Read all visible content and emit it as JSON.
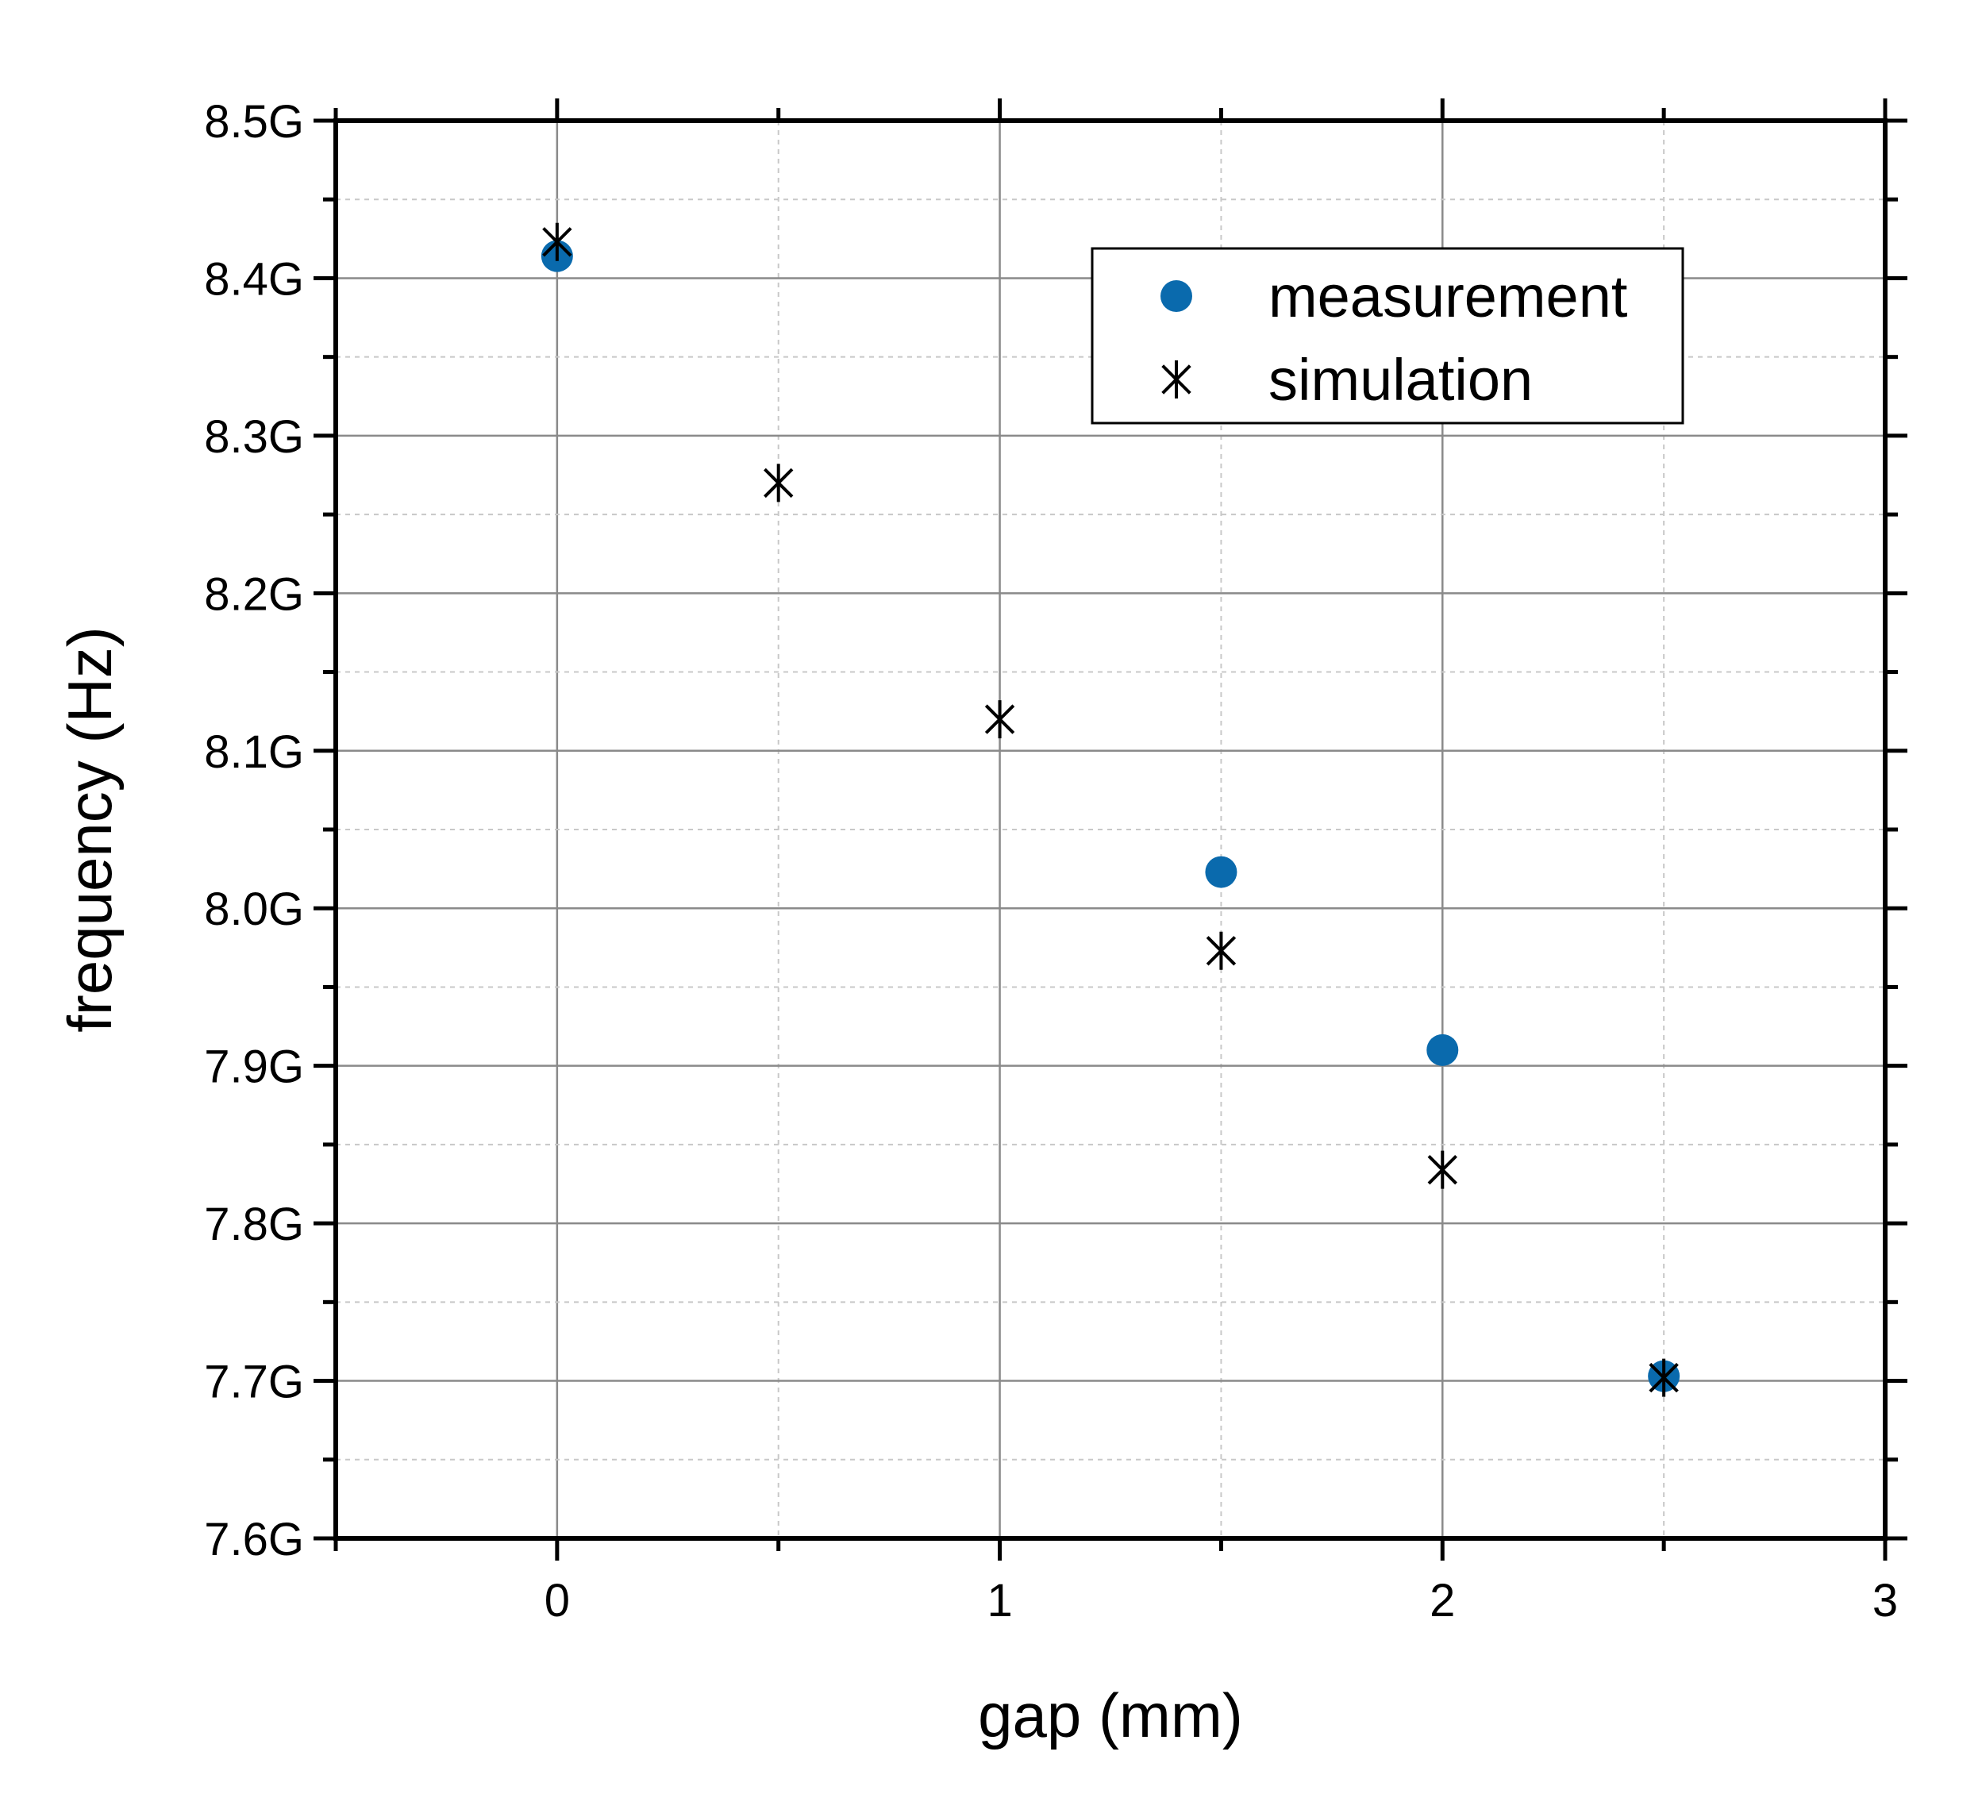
{
  "chart_data": {
    "type": "scatter",
    "xlabel": "gap (mm)",
    "ylabel": "frequency (Hz)",
    "xlim": [
      -0.5,
      3.0
    ],
    "ylim": [
      7.6,
      8.5
    ],
    "x_ticks": [
      0,
      1,
      2,
      3
    ],
    "x_tick_labels": [
      "0",
      "1",
      "2",
      "3"
    ],
    "y_ticks": [
      7.6,
      7.7,
      7.8,
      7.9,
      8.0,
      8.1,
      8.2,
      8.3,
      8.4,
      8.5
    ],
    "y_tick_labels": [
      "7.6G",
      "7.7G",
      "7.8G",
      "7.9G",
      "8.0G",
      "8.1G",
      "8.2G",
      "8.3G",
      "8.4G",
      "8.5G"
    ],
    "y_unit_note": "GHz",
    "grid": true,
    "legend_position": "top-right",
    "series": [
      {
        "name": "measurement",
        "marker": "filled-circle",
        "color": "#0a6aad",
        "x": [
          0,
          1.5,
          2.0,
          2.5
        ],
        "y": [
          8.414,
          8.023,
          7.91,
          7.703
        ]
      },
      {
        "name": "simulation",
        "marker": "asterisk",
        "color": "#000000",
        "x": [
          0,
          0.5,
          1.0,
          1.5,
          2.0,
          2.5
        ],
        "y": [
          8.423,
          8.27,
          8.12,
          7.973,
          7.834,
          7.702
        ]
      }
    ]
  }
}
